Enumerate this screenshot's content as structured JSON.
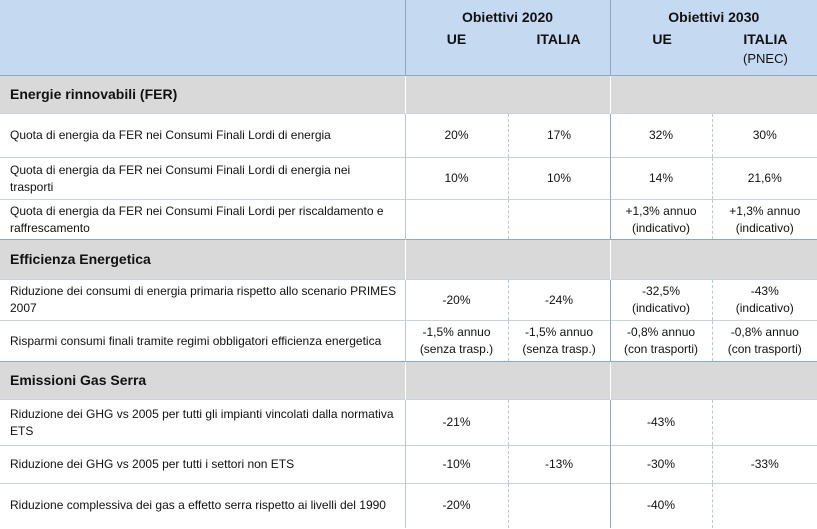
{
  "header": {
    "col_2020": "Obiettivi 2020",
    "col_2030": "Obiettivi 2030",
    "ue": "UE",
    "italia": "ITALIA",
    "pnec": "(PNEC)"
  },
  "sections": [
    {
      "title": "Energie rinnovabili (FER)",
      "rows": [
        {
          "label": "Quota di energia da FER nei Consumi Finali Lordi di energia",
          "v2020_ue": "20%",
          "v2020_it": "17%",
          "v2030_ue": "32%",
          "v2030_it": "30%"
        },
        {
          "label": "Quota di energia da FER nei Consumi Finali Lordi di energia nei trasporti",
          "v2020_ue": "10%",
          "v2020_it": "10%",
          "v2030_ue": "14%",
          "v2030_it": "21,6%"
        },
        {
          "label": "Quota di energia da FER nei Consumi Finali Lordi per riscaldamento e raffrescamento",
          "v2020_ue": "",
          "v2020_it": "",
          "v2030_ue": "+1,3% annuo",
          "v2030_ue_note": "(indicativo)",
          "v2030_it": "+1,3% annuo",
          "v2030_it_note": "(indicativo)"
        }
      ]
    },
    {
      "title": "Efficienza Energetica",
      "rows": [
        {
          "label": "Riduzione dei consumi di energia primaria rispetto allo scenario PRIMES 2007",
          "v2020_ue": "-20%",
          "v2020_it": "-24%",
          "v2030_ue": "-32,5%",
          "v2030_ue_note": "(indicativo)",
          "v2030_it": "-43%",
          "v2030_it_note": "(indicativo)"
        },
        {
          "label": "Risparmi consumi finali tramite regimi obbligatori efficienza energetica",
          "v2020_ue": "-1,5% annuo",
          "v2020_ue_note": "(senza trasp.)",
          "v2020_it": "-1,5% annuo",
          "v2020_it_note": "(senza trasp.)",
          "v2030_ue": "-0,8% annuo",
          "v2030_ue_note": "(con trasporti)",
          "v2030_it": "-0,8% annuo",
          "v2030_it_note": "(con trasporti)"
        }
      ]
    },
    {
      "title": "Emissioni Gas Serra",
      "rows": [
        {
          "label": "Riduzione dei GHG vs 2005 per tutti gli impianti vincolati dalla normativa ETS",
          "v2020_ue": "-21%",
          "v2020_it": "",
          "v2030_ue": "-43%",
          "v2030_it": ""
        },
        {
          "label": "Riduzione dei GHG vs 2005 per tutti i settori non ETS",
          "v2020_ue": "-10%",
          "v2020_it": "-13%",
          "v2030_ue": "-30%",
          "v2030_it": "-33%"
        },
        {
          "label": "Riduzione complessiva dei gas a effetto serra rispetto ai livelli del 1990",
          "v2020_ue": "-20%",
          "v2020_it": "",
          "v2030_ue": "-40%",
          "v2030_it": ""
        }
      ]
    }
  ],
  "colors": {
    "header_bg": "#c5d9f1",
    "section_bg": "#d9d9d9",
    "border": "#8ea9c8"
  }
}
